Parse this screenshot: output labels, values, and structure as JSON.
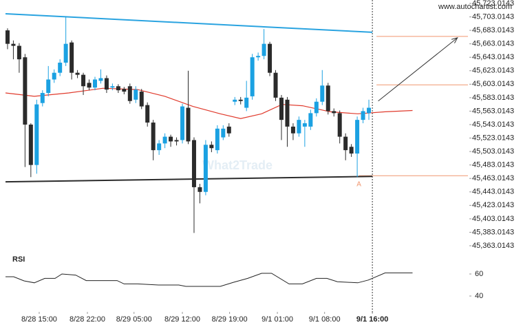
{
  "chart_data": {
    "type": "candlestick",
    "source": "www.autochartist.com",
    "watermark": "What2Trade",
    "x": [
      0,
      1,
      2,
      3,
      4,
      5,
      6,
      7,
      8,
      9,
      10,
      11,
      12,
      13,
      14,
      15,
      16,
      17,
      18,
      19,
      20,
      21,
      22,
      23,
      24,
      25,
      26,
      27,
      28,
      29,
      30,
      31,
      32,
      33,
      34,
      35,
      36,
      37,
      38,
      39,
      40,
      41,
      42,
      43,
      44,
      45,
      46,
      47,
      48,
      49,
      50,
      51,
      52,
      53,
      54,
      55,
      56,
      57,
      58,
      59,
      60,
      61,
      62
    ],
    "open": [
      45683,
      45663,
      45660,
      45643,
      45543,
      45483,
      45575,
      45590,
      45610,
      45620,
      45635,
      45665,
      45620,
      45617,
      45605,
      45598,
      45608,
      45612,
      45598,
      45600,
      45596,
      45600,
      45580,
      45592,
      45572,
      45546,
      45505,
      45515,
      45525,
      45520,
      45520,
      45568,
      45520,
      45450,
      45443,
      45513,
      45505,
      45524,
      45540,
      45577,
      45580,
      45568,
      45585,
      45643,
      45645,
      45663,
      45620,
      45583,
      45580,
      45540,
      45530,
      45540,
      45540,
      45560,
      45577,
      45601,
      45563,
      45560,
      45525,
      45510,
      45500,
      45550,
      45560
    ],
    "high": [
      45686,
      45668,
      45664,
      45648,
      45545,
      45580,
      45594,
      45630,
      45625,
      45640,
      45703,
      45668,
      45624,
      45620,
      45610,
      45614,
      45625,
      45616,
      45604,
      45603,
      45599,
      45604,
      45600,
      45596,
      45576,
      45550,
      45520,
      45530,
      45528,
      45524,
      45574,
      45623,
      45524,
      45455,
      45520,
      45518,
      45542,
      45542,
      45545,
      45584,
      45584,
      45608,
      45648,
      45650,
      45685,
      45666,
      45624,
      45587,
      45584,
      45545,
      45555,
      45550,
      45565,
      45582,
      45624,
      45605,
      45567,
      45564,
      45530,
      45514,
      45555,
      45568,
      45580
    ],
    "low": [
      45655,
      45640,
      45620,
      45480,
      45465,
      45470,
      45570,
      45585,
      45605,
      45615,
      45630,
      45610,
      45612,
      45587,
      45594,
      45594,
      45604,
      45590,
      45594,
      45590,
      45588,
      45574,
      45575,
      45566,
      45540,
      45490,
      45498,
      45508,
      45510,
      45512,
      45515,
      45514,
      45382,
      45426,
      45438,
      45502,
      45500,
      45520,
      45525,
      45572,
      45573,
      45563,
      45580,
      45638,
      45640,
      45615,
      45578,
      45520,
      45510,
      45520,
      45525,
      45510,
      45535,
      45555,
      45572,
      45558,
      45555,
      45515,
      45490,
      45495,
      45465,
      45545,
      45550
    ],
    "close": [
      45663,
      45660,
      45640,
      45543,
      45483,
      45573,
      45590,
      45610,
      45620,
      45635,
      45663,
      45620,
      45617,
      45600,
      45598,
      45610,
      45612,
      45595,
      45600,
      45594,
      45592,
      45578,
      45595,
      45570,
      45546,
      45505,
      45515,
      45525,
      45518,
      45518,
      45570,
      45518,
      45450,
      45443,
      45513,
      45508,
      45537,
      45537,
      45530,
      45580,
      45578,
      45583,
      45643,
      45645,
      45663,
      45620,
      45583,
      45550,
      45540,
      45530,
      45550,
      45545,
      45560,
      45577,
      45601,
      45563,
      45560,
      45525,
      45505,
      45500,
      45550,
      45563,
      45568
    ],
    "up_color": "#1ba1e2",
    "down_color": "#2b2b2b",
    "moving_average": {
      "color": "#e0392b",
      "x": [
        -0.35,
        4.6,
        10.5,
        16.4,
        22.3,
        27.0,
        31.8,
        36.5,
        40.0,
        43.6,
        47.1,
        50.6,
        55.4,
        60.1,
        64.8,
        69.5
      ],
      "values": [
        45590,
        45585,
        45590,
        45597,
        45595,
        45585,
        45570,
        45559,
        45552,
        45559,
        45573,
        45571,
        45562,
        45559,
        45562,
        45564
      ]
    },
    "trend_lines": [
      {
        "name": "resistance",
        "color": "#29a3e0",
        "x": [
          -0.35,
          62.6
        ],
        "values": [
          45707.7,
          45680.1
        ]
      },
      {
        "name": "support",
        "color": "#2b2b2b",
        "x": [
          -0.35,
          62.6
        ],
        "values": [
          45458,
          45466
        ]
      }
    ],
    "levels": {
      "color": "#f0956e",
      "values": [
        45674,
        45602,
        45467
      ]
    },
    "forecast_arrow": {
      "color": "#333333",
      "x": [
        63.6,
        77.2
      ],
      "values": [
        45578,
        45672
      ]
    },
    "pattern_point": {
      "label": "A",
      "x": 60.3,
      "value": 45458
    },
    "current_x": 62.6,
    "xlim": [
      -0.35,
      79.0
    ],
    "xticks": [
      {
        "value": 5.43,
        "label": "8/28 15:00"
      },
      {
        "value": 13.7,
        "label": "8/28 22:00"
      },
      {
        "value": 21.7,
        "label": "8/29 05:00"
      },
      {
        "value": 30.0,
        "label": "8/29 12:00"
      },
      {
        "value": 38.1,
        "label": "8/29 19:00"
      },
      {
        "value": 46.3,
        "label": "9/1 01:00"
      },
      {
        "value": 54.4,
        "label": "9/1 08:00"
      },
      {
        "value": 62.6,
        "label": "9/1 16:00"
      }
    ],
    "ylim": [
      45354.8,
      45728.1
    ],
    "yticks": [
      {
        "value": 45723.0143,
        "label": "45,723.0143"
      },
      {
        "value": 45703.0143,
        "label": "45,703.0143"
      },
      {
        "value": 45683.0143,
        "label": "45,683.0143"
      },
      {
        "value": 45663.0143,
        "label": "45,663.0143"
      },
      {
        "value": 45643.0143,
        "label": "45,643.0143"
      },
      {
        "value": 45623.0143,
        "label": "45,623.0143"
      },
      {
        "value": 45603.0143,
        "label": "45,603.0143"
      },
      {
        "value": 45583.0143,
        "label": "45,583.0143"
      },
      {
        "value": 45563.0143,
        "label": "45,563.0143"
      },
      {
        "value": 45543.0143,
        "label": "45,543.0143"
      },
      {
        "value": 45523.0143,
        "label": "45,523.0143"
      },
      {
        "value": 45503.0143,
        "label": "45,503.0143"
      },
      {
        "value": 45483.0143,
        "label": "45,483.0143"
      },
      {
        "value": 45463.0143,
        "label": "45,463.0143"
      },
      {
        "value": 45443.0143,
        "label": "45,443.0143"
      },
      {
        "value": 45423.0143,
        "label": "45,423.0143"
      },
      {
        "value": 45403.0143,
        "label": "45,403.0143"
      },
      {
        "value": 45383.0143,
        "label": "45,383.0143"
      },
      {
        "value": 45363.0143,
        "label": "45,363.0143"
      }
    ],
    "rsi": {
      "title": "RSI",
      "color": "#222222",
      "x": [
        -0.35,
        1.06,
        2.83,
        4.6,
        6.38,
        8.15,
        9.33,
        11.7,
        13.5,
        16.4,
        18.8,
        20.0,
        22.3,
        25.9,
        29.4,
        30.6,
        36.5,
        38.8,
        41.2,
        43.6,
        45.3,
        48.3,
        50.6,
        53.0,
        54.8,
        56.6,
        60.1,
        61.9,
        64.8,
        69.5
      ],
      "values": [
        57.5,
        57.5,
        53.75,
        52,
        56,
        56,
        60,
        59,
        54,
        54,
        54,
        51,
        51,
        50,
        50,
        48.75,
        48.75,
        52.5,
        56,
        60.6,
        60.6,
        51,
        51,
        56,
        56,
        53,
        52,
        54.5,
        61,
        61
      ],
      "ylim": [
        27.5,
        78.75
      ],
      "yticks": [
        60,
        40
      ]
    }
  }
}
